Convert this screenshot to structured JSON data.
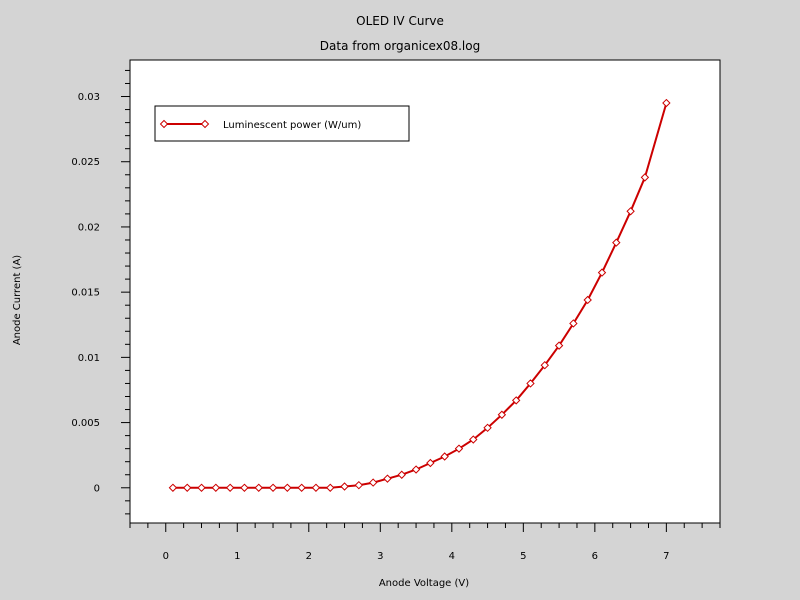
{
  "chart_data": {
    "type": "line",
    "title": "OLED IV Curve",
    "subtitle": "Data from organicex08.log",
    "xlabel": "Anode Voltage (V)",
    "ylabel": "Anode Current (A)",
    "xlim": [
      -0.5,
      7.75
    ],
    "ylim": [
      -0.0027,
      0.0328
    ],
    "x_ticks": [
      0,
      1,
      2,
      3,
      4,
      5,
      6,
      7
    ],
    "x_tick_labels": [
      "0",
      "1",
      "2",
      "3",
      "4",
      "5",
      "6",
      "7"
    ],
    "y_ticks": [
      0,
      0.005,
      0.01,
      0.015,
      0.02,
      0.025,
      0.03
    ],
    "y_tick_labels": [
      "0",
      "0.005",
      "0.01",
      "0.015",
      "0.02",
      "0.025",
      "0.03"
    ],
    "legend_position": "top-left",
    "series": [
      {
        "name": "Luminescent power (W/um)",
        "color": "#cc0000",
        "marker": "diamond",
        "x": [
          0.1,
          0.3,
          0.5,
          0.7,
          0.9,
          1.1,
          1.3,
          1.5,
          1.7,
          1.9,
          2.1,
          2.3,
          2.5,
          2.7,
          2.9,
          3.1,
          3.3,
          3.5,
          3.7,
          3.9,
          4.1,
          4.3,
          4.5,
          4.7,
          4.9,
          5.1,
          5.3,
          5.5,
          5.7,
          5.9,
          6.1,
          6.3,
          6.5,
          6.7,
          7.0
        ],
        "y": [
          0,
          0,
          0,
          0,
          0,
          0,
          0,
          0,
          0,
          0,
          0,
          0,
          0.0001,
          0.0002,
          0.0004,
          0.0007,
          0.001,
          0.0014,
          0.0019,
          0.0024,
          0.003,
          0.0037,
          0.0046,
          0.0056,
          0.0067,
          0.008,
          0.0094,
          0.0109,
          0.0126,
          0.0144,
          0.0165,
          0.0188,
          0.0212,
          0.0238,
          0.0295
        ]
      }
    ]
  }
}
